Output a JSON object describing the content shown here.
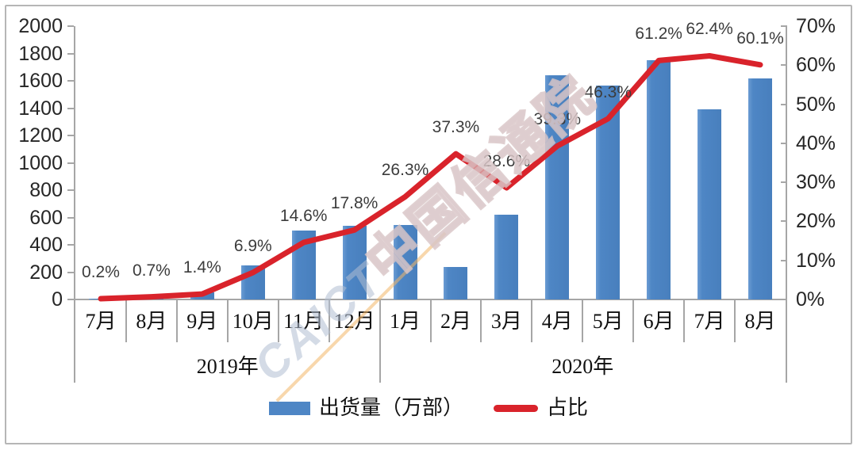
{
  "chart_data": {
    "type": "bar",
    "subtype": "combo-bar-line-dual-axis",
    "categories": [
      "7月",
      "8月",
      "9月",
      "10月",
      "11月",
      "12月",
      "1月",
      "2月",
      "3月",
      "4月",
      "5月",
      "6月",
      "7月",
      "8月"
    ],
    "year_groups": [
      {
        "label": "2019年",
        "start": 0,
        "end": 6
      },
      {
        "label": "2020年",
        "start": 6,
        "end": 14
      }
    ],
    "series": [
      {
        "name": "出货量（万部）",
        "type": "bar",
        "axis": "left",
        "color": "#4E86C5",
        "values": [
          7,
          22,
          50,
          249,
          507,
          541,
          547,
          238,
          622,
          1638,
          1564,
          1751,
          1391,
          1617
        ]
      },
      {
        "name": "占比",
        "type": "line",
        "axis": "right",
        "color": "#D9232B",
        "values": [
          0.2,
          0.7,
          1.4,
          6.9,
          14.6,
          17.8,
          26.3,
          37.3,
          28.6,
          39.3,
          46.3,
          61.2,
          62.4,
          60.1
        ],
        "labels": [
          "0.2%",
          "0.7%",
          "1.4%",
          "6.9%",
          "14.6%",
          "17.8%",
          "26.3%",
          "37.3%",
          "28.6%",
          "39.3%",
          "46.3%",
          "61.2%",
          "62.4%",
          "60.1%"
        ]
      }
    ],
    "left_axis": {
      "min": 0,
      "max": 2000,
      "ticks": [
        "2000",
        "1800",
        "1600",
        "1400",
        "1200",
        "1000",
        "800",
        "600",
        "400",
        "200",
        "0"
      ]
    },
    "right_axis": {
      "min": 0,
      "max": 70,
      "ticks": [
        "70%",
        "60%",
        "50%",
        "40%",
        "30%",
        "20%",
        "10%",
        "0%"
      ]
    },
    "grid": false,
    "legend_position": "bottom-center",
    "title": "",
    "xlabel": "",
    "ylabel": ""
  },
  "legend": [
    {
      "label": "出货量（万部）",
      "swatch": "bar",
      "color": "#4E86C5"
    },
    {
      "label": "占比",
      "swatch": "line",
      "color": "#D9232B"
    }
  ],
  "watermark": {
    "latin": "CAICT",
    "cjk": "中国信通院"
  },
  "colors": {
    "bar": "#4E86C5",
    "line": "#D9232B",
    "axis": "#A6A6A6",
    "text": "#262626",
    "frame": "#B6B6B6",
    "watermark_stroke": "#D8C4C6",
    "watermark_latin": "#B0BED2",
    "watermark_accent": "#F2B767"
  }
}
